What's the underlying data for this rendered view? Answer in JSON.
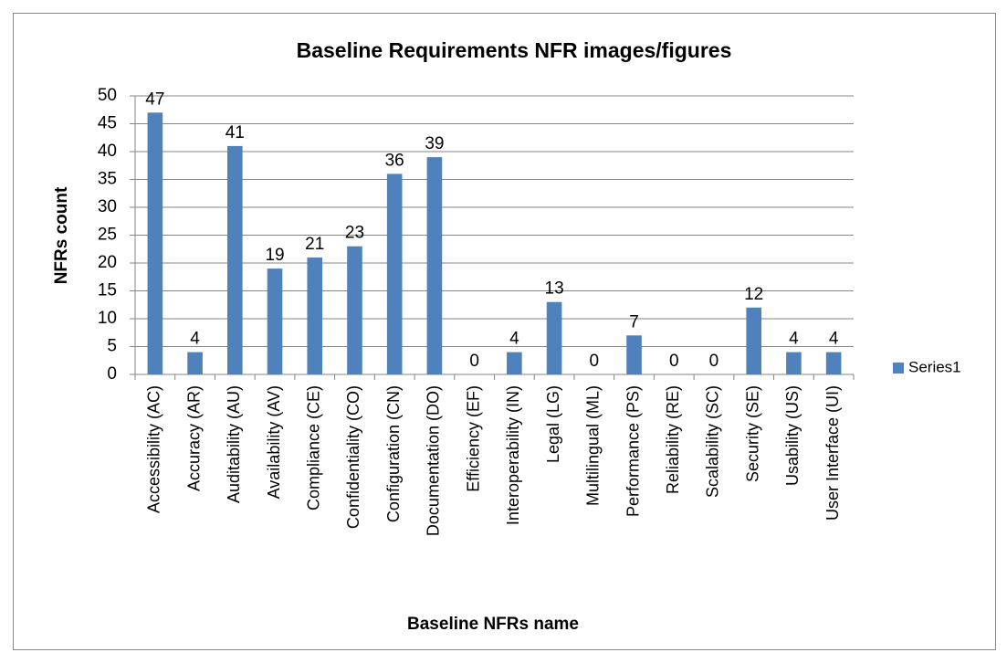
{
  "chart_data": {
    "type": "bar",
    "title": "Baseline Requirements NFR images/figures",
    "x_label": "Baseline NFRs name",
    "y_label": "NFRs count",
    "categories": [
      "Accessibility (AC)",
      "Accuracy (AR)",
      "Auditability (AU)",
      "Availability (AV)",
      "Compliance (CE)",
      "Confidentiality (CO)",
      "Configuration (CN)",
      "Documentation (DO)",
      "Efficiency (EF)",
      "Interoperability (IN)",
      "Legal (LG)",
      "Multilingual (ML)",
      "Performance (PS)",
      "Reliability (RE)",
      "Scalability (SC)",
      "Security (SE)",
      "Usability (US)",
      "User Interface (UI)"
    ],
    "series": [
      {
        "name": "Series1",
        "color": "#4f81bd",
        "values": [
          47,
          4,
          41,
          19,
          21,
          23,
          36,
          39,
          0,
          4,
          13,
          0,
          7,
          0,
          0,
          12,
          4,
          4
        ]
      }
    ],
    "ylim": [
      0,
      50
    ],
    "yticks": [
      0,
      5,
      10,
      15,
      20,
      25,
      30,
      35,
      40,
      45,
      50
    ],
    "grid": true,
    "legend": "right"
  }
}
